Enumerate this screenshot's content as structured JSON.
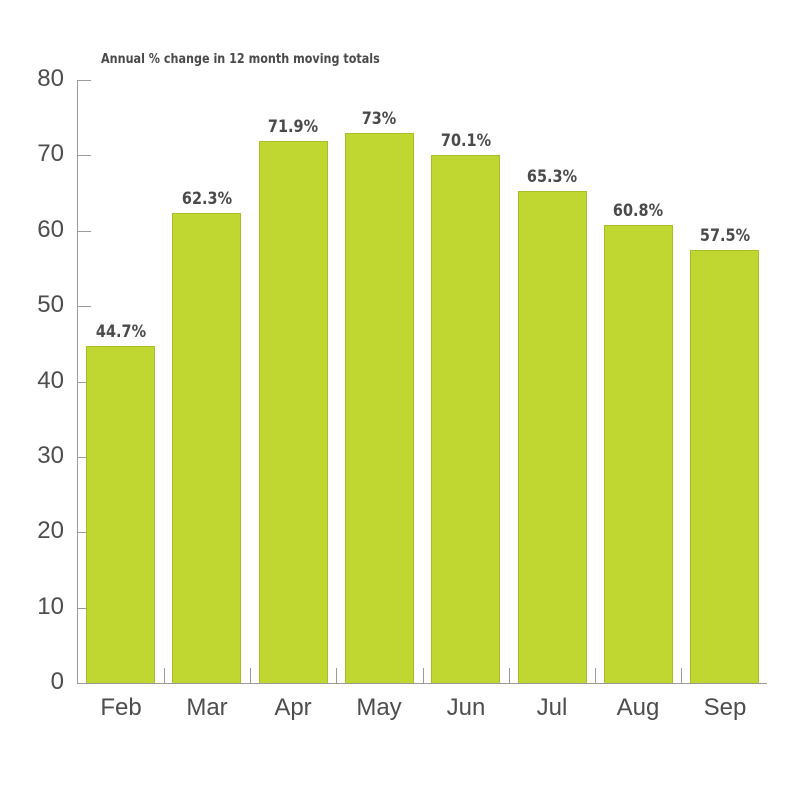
{
  "chart_data": {
    "type": "bar",
    "title": "Annual % change in 12 month moving totals",
    "xlabel": "",
    "ylabel": "",
    "categories": [
      "Feb",
      "Mar",
      "Apr",
      "May",
      "Jun",
      "Jul",
      "Aug",
      "Sep"
    ],
    "values": [
      44.7,
      62.3,
      71.9,
      73,
      70.1,
      65.3,
      60.8,
      57.5
    ],
    "data_labels": [
      "44.7%",
      "62.3%",
      "71.9%",
      "73%",
      "70.1%",
      "65.3%",
      "60.8%",
      "57.5%"
    ],
    "ylim": [
      0,
      80
    ],
    "yticks": [
      0,
      10,
      20,
      30,
      40,
      50,
      60,
      70,
      80
    ],
    "grid": false,
    "legend": null,
    "bar_color": "#bfd730"
  }
}
